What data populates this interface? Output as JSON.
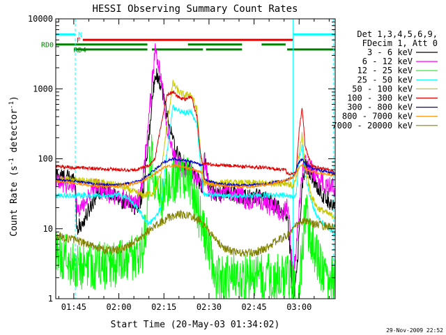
{
  "chart_data": {
    "type": "line",
    "title": "HESSI Observing Summary Count Rates",
    "xlabel": "Start Time (20-May-03 01:34:02)",
    "ylabel": "Count Rate (s⁻¹ detector⁻¹)",
    "ylabel_main": "Count Rate (s",
    "ylabel_sup1": "-1",
    "ylabel_mid": " detector",
    "ylabel_sup2": "-1",
    "ylabel_end": ")",
    "yscale": "log",
    "ylim": [
      1,
      10000
    ],
    "xlim_minutes_after_0130": [
      9,
      102
    ],
    "x_unit": "minutes after 01:30 UT",
    "x_ticks": [
      {
        "label": "01:45",
        "value": 15
      },
      {
        "label": "02:00",
        "value": 30
      },
      {
        "label": "02:15",
        "value": 45
      },
      {
        "label": "02:30",
        "value": 60
      },
      {
        "label": "02:45",
        "value": 75
      },
      {
        "label": "03:00",
        "value": 90
      }
    ],
    "y_ticks": [
      {
        "label": "1",
        "value": 1
      },
      {
        "label": "10",
        "value": 10
      },
      {
        "label": "100",
        "value": 100
      },
      {
        "label": "1000",
        "value": 1000
      },
      {
        "label": "10000",
        "value": 10000
      }
    ],
    "legend_position": "right",
    "legend_header": [
      "Det 1,3,4,5,6,9,",
      "FDecim 1, Att 0"
    ],
    "footer_date": "29-Nov-2009 22:52",
    "flags": [
      {
        "label": "N",
        "color": "#00ffff",
        "value": 6000,
        "segments": [
          [
            9,
            15.5
          ],
          [
            88,
            102
          ]
        ]
      },
      {
        "label": "F",
        "color": "#e00000",
        "value": 5000,
        "segments": [
          [
            18,
            88
          ]
        ]
      },
      {
        "label": "RD0",
        "color": "#008000",
        "value": 4300,
        "segments": [
          [
            9,
            39.5
          ],
          [
            53,
            71
          ],
          [
            77.5,
            85.5
          ]
        ]
      },
      {
        "label": "RD4",
        "color": "#008000",
        "value": 3650,
        "segments": [
          [
            15,
            39.5
          ],
          [
            41,
            58
          ],
          [
            59,
            71
          ],
          [
            86,
            102
          ]
        ]
      }
    ],
    "series": [
      {
        "name": "3 - 6 keV",
        "color": "#000000",
        "noise": 0.12,
        "x": [
          9,
          12,
          15.5,
          16,
          18,
          22,
          25,
          28,
          31,
          34,
          36,
          38,
          40,
          42,
          44,
          46,
          48,
          50,
          52,
          55,
          58,
          58.5,
          60,
          63,
          66,
          70,
          73,
          76,
          79,
          82,
          84,
          86,
          87,
          88,
          89,
          90,
          91,
          92,
          94,
          96,
          98,
          100,
          102
        ],
        "y": [
          60,
          55,
          50,
          10,
          12,
          28,
          40,
          30,
          25,
          22,
          20,
          30,
          200,
          1700,
          1200,
          450,
          180,
          100,
          80,
          60,
          40,
          120,
          40,
          30,
          35,
          30,
          28,
          30,
          26,
          22,
          18,
          16,
          5,
          1,
          2,
          8,
          40,
          80,
          60,
          40,
          30,
          25,
          20
        ]
      },
      {
        "name": "6 - 12 keV",
        "color": "#ff00ff",
        "noise": 0.14,
        "x": [
          9,
          12,
          15.5,
          16,
          18,
          22,
          25,
          28,
          31,
          34,
          36,
          38,
          40,
          42,
          44,
          46,
          48,
          50,
          52,
          55,
          58,
          58.5,
          60,
          63,
          66,
          70,
          73,
          76,
          79,
          82,
          84,
          86,
          87,
          88,
          89,
          90,
          91,
          92,
          94,
          96,
          98,
          100,
          102
        ],
        "y": [
          45,
          43,
          40,
          18,
          22,
          40,
          35,
          30,
          28,
          25,
          22,
          45,
          400,
          3500,
          1500,
          300,
          110,
          80,
          70,
          55,
          40,
          110,
          35,
          30,
          32,
          30,
          25,
          28,
          22,
          20,
          16,
          20,
          10,
          2,
          5,
          20,
          60,
          90,
          70,
          55,
          45,
          40,
          38
        ]
      },
      {
        "name": "12 - 25 keV",
        "color": "#00ff00",
        "noise": 0.35,
        "x": [
          9,
          12,
          15,
          18,
          22,
          26,
          30,
          33,
          36,
          38,
          39,
          40,
          41,
          42,
          43,
          44,
          46,
          48,
          50,
          52,
          54,
          56,
          58,
          60,
          62,
          66,
          70,
          74,
          78,
          82,
          86,
          88,
          89,
          90,
          91,
          92,
          93,
          95,
          97,
          100,
          102
        ],
        "y": [
          4,
          4,
          3,
          3,
          3,
          3,
          3,
          3.5,
          4,
          5,
          10,
          60,
          140,
          40,
          30,
          30,
          35,
          45,
          50,
          60,
          45,
          20,
          10,
          5,
          2,
          2,
          2,
          2,
          2,
          2,
          2,
          1.5,
          1,
          1,
          5,
          20,
          10,
          5,
          3,
          2,
          2
        ]
      },
      {
        "name": "25 - 50 keV",
        "color": "#00ffff",
        "noise": 0.04,
        "x": [
          9,
          15,
          20,
          25,
          30,
          33,
          36,
          38,
          40,
          42,
          44,
          46,
          48,
          50,
          52,
          54,
          56,
          57,
          58,
          58.5,
          62,
          66,
          70,
          74,
          78,
          82,
          86,
          88,
          89,
          90,
          91,
          92,
          94,
          96,
          98,
          100,
          102
        ],
        "y": [
          30,
          30,
          30,
          30,
          30,
          28,
          20,
          15,
          12,
          14,
          20,
          120,
          550,
          500,
          450,
          480,
          300,
          100,
          35,
          30,
          30,
          30,
          30,
          30,
          30,
          30,
          30,
          28,
          30,
          100,
          150,
          60,
          25,
          15,
          12,
          10,
          8
        ]
      },
      {
        "name": "50 - 100 keV",
        "color": "#c8c800",
        "noise": 0.05,
        "x": [
          9,
          15,
          20,
          25,
          30,
          34,
          38,
          41,
          42,
          44,
          46,
          48,
          50,
          52,
          54,
          56,
          57,
          58,
          58.5,
          62,
          66,
          70,
          74,
          78,
          82,
          86,
          88,
          89,
          90,
          91,
          92,
          94,
          96,
          98,
          100,
          102
        ],
        "y": [
          50,
          50,
          48,
          45,
          42,
          35,
          30,
          32,
          35,
          60,
          300,
          1200,
          900,
          800,
          850,
          500,
          150,
          50,
          45,
          45,
          45,
          45,
          45,
          45,
          45,
          45,
          40,
          50,
          120,
          220,
          80,
          30,
          20,
          18,
          16,
          15
        ]
      },
      {
        "name": "100 - 300 keV",
        "color": "#e00000",
        "noise": 0.025,
        "x": [
          9,
          15,
          20,
          25,
          30,
          33,
          36,
          38,
          40,
          42,
          44,
          46,
          48,
          50,
          52,
          54,
          56,
          57,
          58,
          58.5,
          62,
          66,
          70,
          74,
          78,
          82,
          85.5,
          86,
          88,
          89,
          90,
          91,
          92,
          94,
          96,
          98,
          100,
          102
        ],
        "y": [
          78,
          75,
          73,
          72,
          70,
          68,
          70,
          75,
          80,
          100,
          300,
          800,
          900,
          750,
          700,
          800,
          400,
          130,
          80,
          85,
          82,
          80,
          78,
          76,
          75,
          72,
          70,
          62,
          60,
          65,
          250,
          550,
          150,
          80,
          75,
          72,
          70,
          62
        ]
      },
      {
        "name": "300 - 800 keV",
        "color": "#0000c8",
        "noise": 0.02,
        "x": [
          9,
          15,
          20,
          25,
          30,
          34,
          38,
          42,
          45,
          48,
          52,
          55,
          58,
          58.5,
          62,
          66,
          70,
          74,
          78,
          82,
          86,
          88,
          89,
          90,
          91,
          92,
          94,
          96,
          98,
          100,
          102
        ],
        "y": [
          50,
          48,
          45,
          42,
          42,
          45,
          50,
          70,
          90,
          100,
          95,
          88,
          80,
          50,
          45,
          43,
          42,
          42,
          43,
          46,
          50,
          55,
          70,
          90,
          100,
          85,
          75,
          70,
          66,
          64,
          60
        ]
      },
      {
        "name": "800 - 7000 keV",
        "color": "#ff8c00",
        "noise": 0.02,
        "x": [
          9,
          15,
          20,
          25,
          30,
          34,
          38,
          42,
          45,
          48,
          52,
          55,
          58,
          58.5,
          62,
          66,
          70,
          74,
          78,
          82,
          86,
          88,
          89,
          90,
          91,
          92,
          94,
          96,
          98,
          100,
          102
        ],
        "y": [
          48,
          45,
          42,
          40,
          40,
          43,
          48,
          62,
          75,
          80,
          76,
          70,
          62,
          46,
          42,
          40,
          40,
          40,
          42,
          45,
          50,
          55,
          62,
          75,
          82,
          72,
          66,
          63,
          61,
          60,
          58
        ]
      },
      {
        "name": "7000 - 20000 keV",
        "color": "#808000",
        "noise": 0.06,
        "x": [
          9,
          15,
          20,
          25,
          30,
          34,
          38,
          42,
          46,
          50,
          54,
          57,
          58.5,
          62,
          66,
          70,
          74,
          78,
          82,
          86,
          88,
          90,
          92,
          94,
          96,
          98,
          100,
          102
        ],
        "y": [
          8,
          7,
          6,
          5,
          5,
          6,
          8,
          11,
          14,
          16,
          15,
          13,
          11,
          7,
          5,
          4.5,
          4.5,
          5,
          6.5,
          8,
          10,
          12,
          13,
          12,
          11.5,
          11,
          11,
          10
        ]
      }
    ]
  }
}
